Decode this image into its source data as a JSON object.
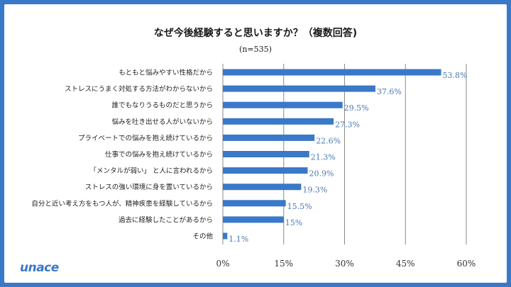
{
  "brand": {
    "logo_text": "unace"
  },
  "chart_data": {
    "type": "bar",
    "orientation": "horizontal",
    "title": "なぜ今後経験すると思いますか？（複数回答)",
    "subtitle": "(n=535)",
    "categories": [
      "もともと悩みやすい性格だから",
      "ストレスにうまく対処する方法がわからないから",
      "誰でもなりうるものだと思うから",
      "悩みを吐き出せる人がいないから",
      "プライベートでの悩みを抱え続けているから",
      "仕事での悩みを抱え続けているから",
      "「メンタルが弱い」 と人に言われるから",
      "ストレスの強い環境に身を置いているから",
      "自分と近い考え方をもつ人が、精神疾患を経験しているから",
      "過去に経験したことがあるから",
      "その他"
    ],
    "values": [
      53.8,
      37.6,
      29.5,
      27.3,
      22.6,
      21.3,
      20.9,
      19.3,
      15.5,
      15,
      1.1
    ],
    "value_labels": [
      "53.8%",
      "37.6%",
      "29.5%",
      "27.3%",
      "22.6%",
      "21.3%",
      "20.9%",
      "19.3%",
      "15.5%",
      "15%",
      "1.1%"
    ],
    "xlim": [
      0,
      60
    ],
    "xticks": [
      0,
      15,
      30,
      45,
      60
    ],
    "xtick_labels": [
      "0%",
      "15%",
      "30%",
      "45%",
      "60%"
    ],
    "grid": true,
    "bar_color": "#3a78c9",
    "value_label_color": "#4a78b5",
    "background_color": "#3a78c9"
  }
}
